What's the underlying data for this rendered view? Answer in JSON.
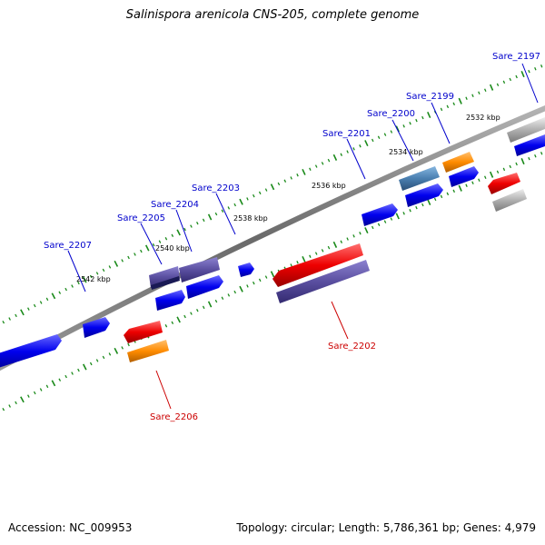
{
  "title": "Salinispora arenicola CNS-205, complete genome",
  "footer": {
    "accession": "Accession: NC_009953",
    "summary": "Topology: circular; Length: 5,786,361 bp; Genes: 4,979"
  },
  "colors": {
    "forward_label": "#0000cc",
    "reverse_label": "#cc0000",
    "backbone": "#777777",
    "tick": "#1a8a1a",
    "blue": "#0000ee",
    "red": "#ee0000",
    "orange": "#ff8c00",
    "purple": "#5a4fa0",
    "steel": "#4a7fb0",
    "gray": "#b0b0b0"
  },
  "ticks": [
    "2532 kbp",
    "2534 kbp",
    "2536 kbp",
    "2538 kbp",
    "2540 kbp",
    "2542 kbp"
  ],
  "labels": [
    {
      "text": "Sare_2197",
      "strand": "forward"
    },
    {
      "text": "Sare_2199",
      "strand": "forward"
    },
    {
      "text": "Sare_2200",
      "strand": "forward"
    },
    {
      "text": "Sare_2201",
      "strand": "forward"
    },
    {
      "text": "Sare_2203",
      "strand": "forward"
    },
    {
      "text": "Sare_2204",
      "strand": "forward"
    },
    {
      "text": "Sare_2205",
      "strand": "forward"
    },
    {
      "text": "Sare_2207",
      "strand": "forward"
    },
    {
      "text": "Sare_2202",
      "strand": "reverse"
    },
    {
      "text": "Sare_2206",
      "strand": "reverse"
    }
  ]
}
